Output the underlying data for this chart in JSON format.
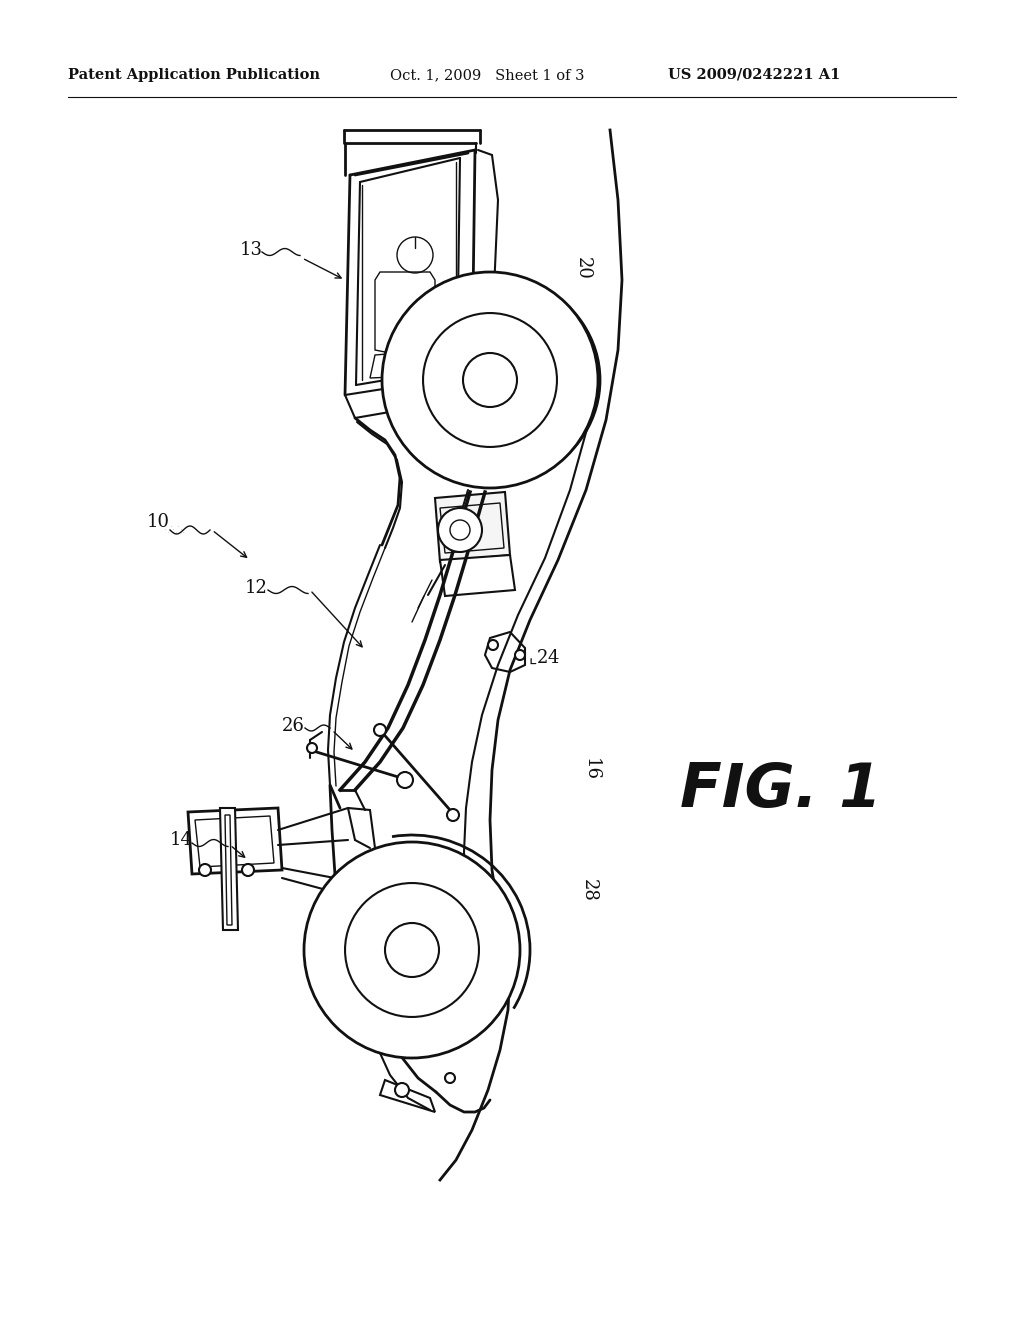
{
  "background_color": "#ffffff",
  "header_left": "Patent Application Publication",
  "header_center": "Oct. 1, 2009   Sheet 1 of 3",
  "header_right": "US 2009/0242221 A1",
  "fig_label": "FIG. 1",
  "line_color": "#111111",
  "header_fontsize": 10.5,
  "label_fontsize": 13
}
